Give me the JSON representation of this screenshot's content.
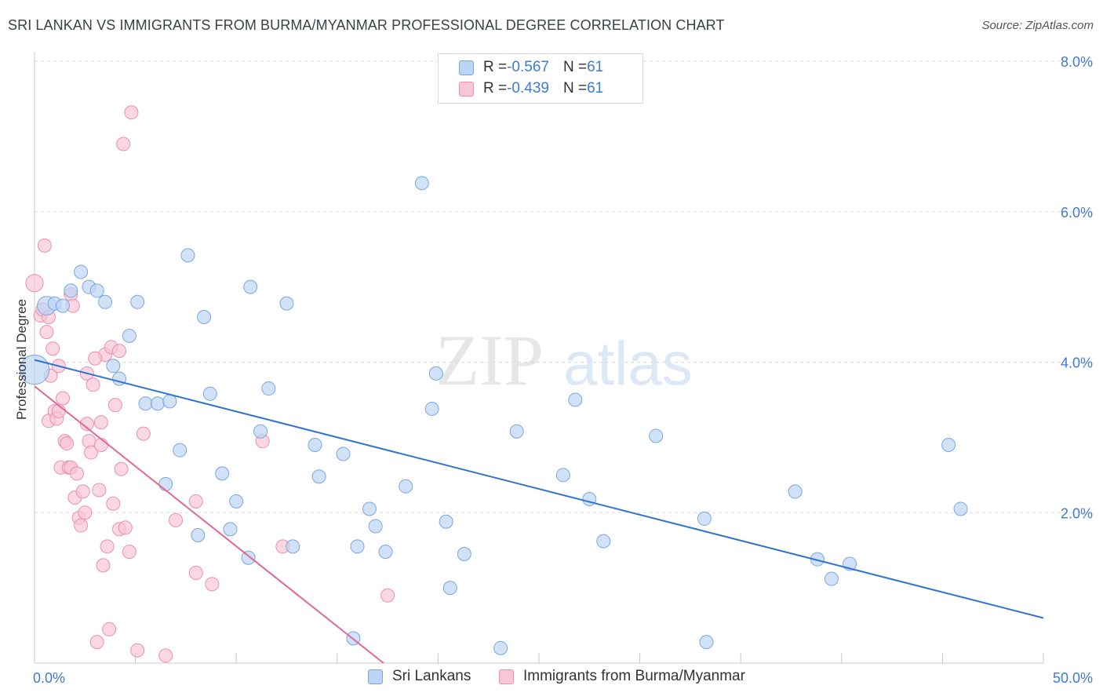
{
  "header": {
    "title": "SRI LANKAN VS IMMIGRANTS FROM BURMA/MYANMAR PROFESSIONAL DEGREE CORRELATION CHART",
    "source": "Source: ZipAtlas.com"
  },
  "legend": {
    "rows": [
      {
        "r_label": "R = ",
        "r_value": "-0.567",
        "n_label": "N = ",
        "n_value": "61"
      },
      {
        "r_label": "R = ",
        "r_value": "-0.439",
        "n_label": "N = ",
        "n_value": "61"
      }
    ]
  },
  "bottom_legend": {
    "items": [
      {
        "label": "Sri Lankans"
      },
      {
        "label": "Immigrants from Burma/Myanmar"
      }
    ]
  },
  "watermark": {
    "zip": "ZIP",
    "atlas": "atlas"
  },
  "colors": {
    "blue_fill": "#bcd4f5",
    "blue_stroke": "#7aa7e0",
    "blue_line": "#2f74d0",
    "pink_fill": "#f8c6d6",
    "pink_stroke": "#e991ae",
    "pink_line": "#e06796",
    "tick_text": "#3d7bd4",
    "grid": "#dcdcdc"
  },
  "chart_data": {
    "type": "scatter",
    "ylabel": "Professional Degree",
    "xlim": [
      0,
      50
    ],
    "ylim": [
      0,
      8
    ],
    "x_tick_labels": [
      "0.0%",
      "50.0%"
    ],
    "y_ticks": [
      2,
      4,
      6,
      8
    ],
    "y_tick_labels": [
      "2.0%",
      "4.0%",
      "6.0%",
      "8.0%"
    ],
    "grid": "horizontal dashed",
    "legend_placement": "top-center",
    "series": [
      {
        "name": "Sri Lankans",
        "color": "#bcd4f5",
        "trendline": {
          "x": [
            0.0,
            50.0
          ],
          "y": [
            4.03,
            0.6
          ]
        },
        "points": [
          [
            0.0,
            3.9,
            2.2
          ],
          [
            0.6,
            4.75,
            1.4
          ],
          [
            1.0,
            4.78,
            1
          ],
          [
            1.4,
            4.75,
            1
          ],
          [
            1.8,
            4.95,
            1
          ],
          [
            2.3,
            5.2,
            1
          ],
          [
            2.7,
            5.0,
            1
          ],
          [
            3.1,
            4.95,
            1
          ],
          [
            3.5,
            4.8,
            1
          ],
          [
            3.9,
            3.95,
            1
          ],
          [
            4.2,
            3.78,
            1
          ],
          [
            4.7,
            4.35,
            1
          ],
          [
            5.1,
            4.8,
            1
          ],
          [
            5.5,
            3.45,
            1
          ],
          [
            6.1,
            3.45,
            1
          ],
          [
            6.5,
            2.38,
            1
          ],
          [
            6.7,
            3.48,
            1
          ],
          [
            7.2,
            2.83,
            1
          ],
          [
            7.6,
            5.42,
            1
          ],
          [
            8.1,
            1.7,
            1
          ],
          [
            8.4,
            4.6,
            1
          ],
          [
            8.7,
            3.58,
            1
          ],
          [
            9.3,
            2.52,
            1
          ],
          [
            9.7,
            1.78,
            1
          ],
          [
            10.0,
            2.15,
            1
          ],
          [
            10.6,
            1.4,
            1
          ],
          [
            10.7,
            5.0,
            1
          ],
          [
            11.2,
            3.08,
            1
          ],
          [
            11.6,
            3.65,
            1
          ],
          [
            12.5,
            4.78,
            1
          ],
          [
            12.8,
            1.55,
            1
          ],
          [
            13.9,
            2.9,
            1
          ],
          [
            14.1,
            2.48,
            1
          ],
          [
            15.3,
            2.78,
            1
          ],
          [
            15.8,
            0.33,
            1
          ],
          [
            16.0,
            1.55,
            1
          ],
          [
            16.6,
            2.05,
            1
          ],
          [
            16.9,
            1.82,
            1
          ],
          [
            17.4,
            1.48,
            1
          ],
          [
            18.4,
            2.35,
            1
          ],
          [
            19.2,
            6.38,
            1
          ],
          [
            19.7,
            3.38,
            1
          ],
          [
            19.9,
            3.85,
            1
          ],
          [
            20.4,
            1.88,
            1
          ],
          [
            20.6,
            1.0,
            1
          ],
          [
            21.3,
            1.45,
            1
          ],
          [
            23.1,
            0.2,
            1
          ],
          [
            23.9,
            3.08,
            1
          ],
          [
            26.2,
            2.5,
            1
          ],
          [
            26.8,
            3.5,
            1
          ],
          [
            27.5,
            2.18,
            1
          ],
          [
            28.2,
            1.62,
            1
          ],
          [
            30.8,
            3.02,
            1
          ],
          [
            33.3,
            0.28,
            1
          ],
          [
            33.2,
            1.92,
            1
          ],
          [
            37.7,
            2.28,
            1
          ],
          [
            38.8,
            1.38,
            1
          ],
          [
            39.5,
            1.12,
            1
          ],
          [
            40.4,
            1.32,
            1
          ],
          [
            45.3,
            2.9,
            1
          ],
          [
            45.9,
            2.05,
            1
          ]
        ]
      },
      {
        "name": "Immigrants from Burma/Myanmar",
        "color": "#f8c6d6",
        "trendline": {
          "x": [
            0.0,
            17.3
          ],
          "y": [
            3.68,
            0.0
          ]
        },
        "points": [
          [
            0.0,
            5.05,
            1.3
          ],
          [
            0.3,
            4.62,
            1
          ],
          [
            0.4,
            4.7,
            1
          ],
          [
            0.5,
            5.55,
            1
          ],
          [
            0.6,
            4.4,
            1
          ],
          [
            0.7,
            3.22,
            1
          ],
          [
            0.7,
            4.6,
            1
          ],
          [
            0.8,
            3.82,
            1
          ],
          [
            0.9,
            4.18,
            1
          ],
          [
            1.0,
            3.35,
            1
          ],
          [
            1.1,
            3.25,
            1
          ],
          [
            1.2,
            3.35,
            1
          ],
          [
            1.2,
            3.95,
            1
          ],
          [
            1.3,
            2.6,
            1
          ],
          [
            1.4,
            3.52,
            1
          ],
          [
            1.5,
            2.95,
            1
          ],
          [
            1.6,
            2.92,
            1
          ],
          [
            1.7,
            2.6,
            1
          ],
          [
            1.8,
            2.6,
            1
          ],
          [
            1.8,
            4.9,
            1
          ],
          [
            1.9,
            4.75,
            1
          ],
          [
            2.0,
            2.2,
            1
          ],
          [
            2.1,
            2.52,
            1
          ],
          [
            2.2,
            1.93,
            1
          ],
          [
            2.3,
            1.83,
            1
          ],
          [
            2.4,
            2.28,
            1
          ],
          [
            2.5,
            2.0,
            1
          ],
          [
            2.6,
            3.18,
            1
          ],
          [
            2.6,
            3.85,
            1
          ],
          [
            2.7,
            2.95,
            1
          ],
          [
            2.8,
            2.8,
            1
          ],
          [
            2.9,
            3.7,
            1
          ],
          [
            3.1,
            0.28,
            1
          ],
          [
            3.2,
            2.3,
            1
          ],
          [
            3.3,
            2.9,
            1
          ],
          [
            3.3,
            3.2,
            1
          ],
          [
            3.4,
            1.3,
            1
          ],
          [
            3.5,
            4.1,
            1
          ],
          [
            3.6,
            1.55,
            1
          ],
          [
            3.7,
            0.45,
            1
          ],
          [
            3.8,
            4.2,
            1
          ],
          [
            3.9,
            2.12,
            1
          ],
          [
            4.0,
            3.43,
            1
          ],
          [
            4.2,
            1.78,
            1
          ],
          [
            4.3,
            2.58,
            1
          ],
          [
            4.4,
            6.9,
            1
          ],
          [
            4.5,
            1.8,
            1
          ],
          [
            4.7,
            1.48,
            1
          ],
          [
            4.8,
            7.32,
            1
          ],
          [
            5.1,
            0.17,
            1
          ],
          [
            5.4,
            3.05,
            1
          ],
          [
            6.5,
            0.1,
            1
          ],
          [
            7.0,
            1.9,
            1
          ],
          [
            8.0,
            1.2,
            1
          ],
          [
            8.0,
            2.15,
            1
          ],
          [
            8.8,
            1.05,
            1
          ],
          [
            11.3,
            2.95,
            1
          ],
          [
            12.3,
            1.55,
            1
          ],
          [
            17.5,
            0.9,
            1
          ],
          [
            4.2,
            4.15,
            1
          ],
          [
            3.0,
            4.05,
            1
          ]
        ]
      }
    ]
  }
}
